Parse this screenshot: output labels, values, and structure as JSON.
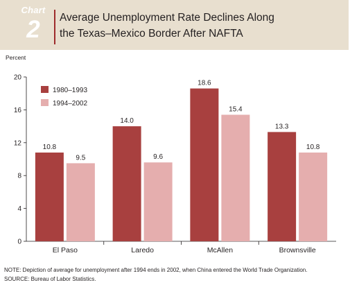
{
  "header": {
    "badge_word": "Chart",
    "badge_number": "2",
    "title_line1": "Average Unemployment Rate Declines Along",
    "title_line2": "the Texas–Mexico Border After NAFTA",
    "background": "#e8dfcf",
    "rule_color": "#9e2a2b"
  },
  "chart_data": {
    "type": "bar",
    "title": "Average Unemployment Rate Declines Along the Texas–Mexico Border After NAFTA",
    "ylabel": "Percent",
    "xlabel": "",
    "categories": [
      "El Paso",
      "Laredo",
      "McAllen",
      "Brownsville"
    ],
    "series": [
      {
        "name": "1980–1993",
        "values": [
          10.8,
          14.0,
          18.6,
          13.3
        ],
        "color": "#a8403f"
      },
      {
        "name": "1994–2002",
        "values": [
          9.5,
          9.6,
          15.4,
          10.8
        ],
        "color": "#e5aeae"
      }
    ],
    "value_labels": [
      [
        "10.8",
        "14.0",
        "18.6",
        "13.3"
      ],
      [
        "9.5",
        "9.6",
        "15.4",
        "10.8"
      ]
    ],
    "ylim": [
      0,
      20
    ],
    "yticks": [
      0,
      4,
      8,
      12,
      16,
      20
    ],
    "grid": false,
    "legend_position": "top-left"
  },
  "notes": {
    "note": "NOTE: Depiction of average for unemployment after 1994 ends in 2002, when China entered the World Trade Organization.",
    "source": "SOURCE: Bureau of Labor Statistics."
  }
}
